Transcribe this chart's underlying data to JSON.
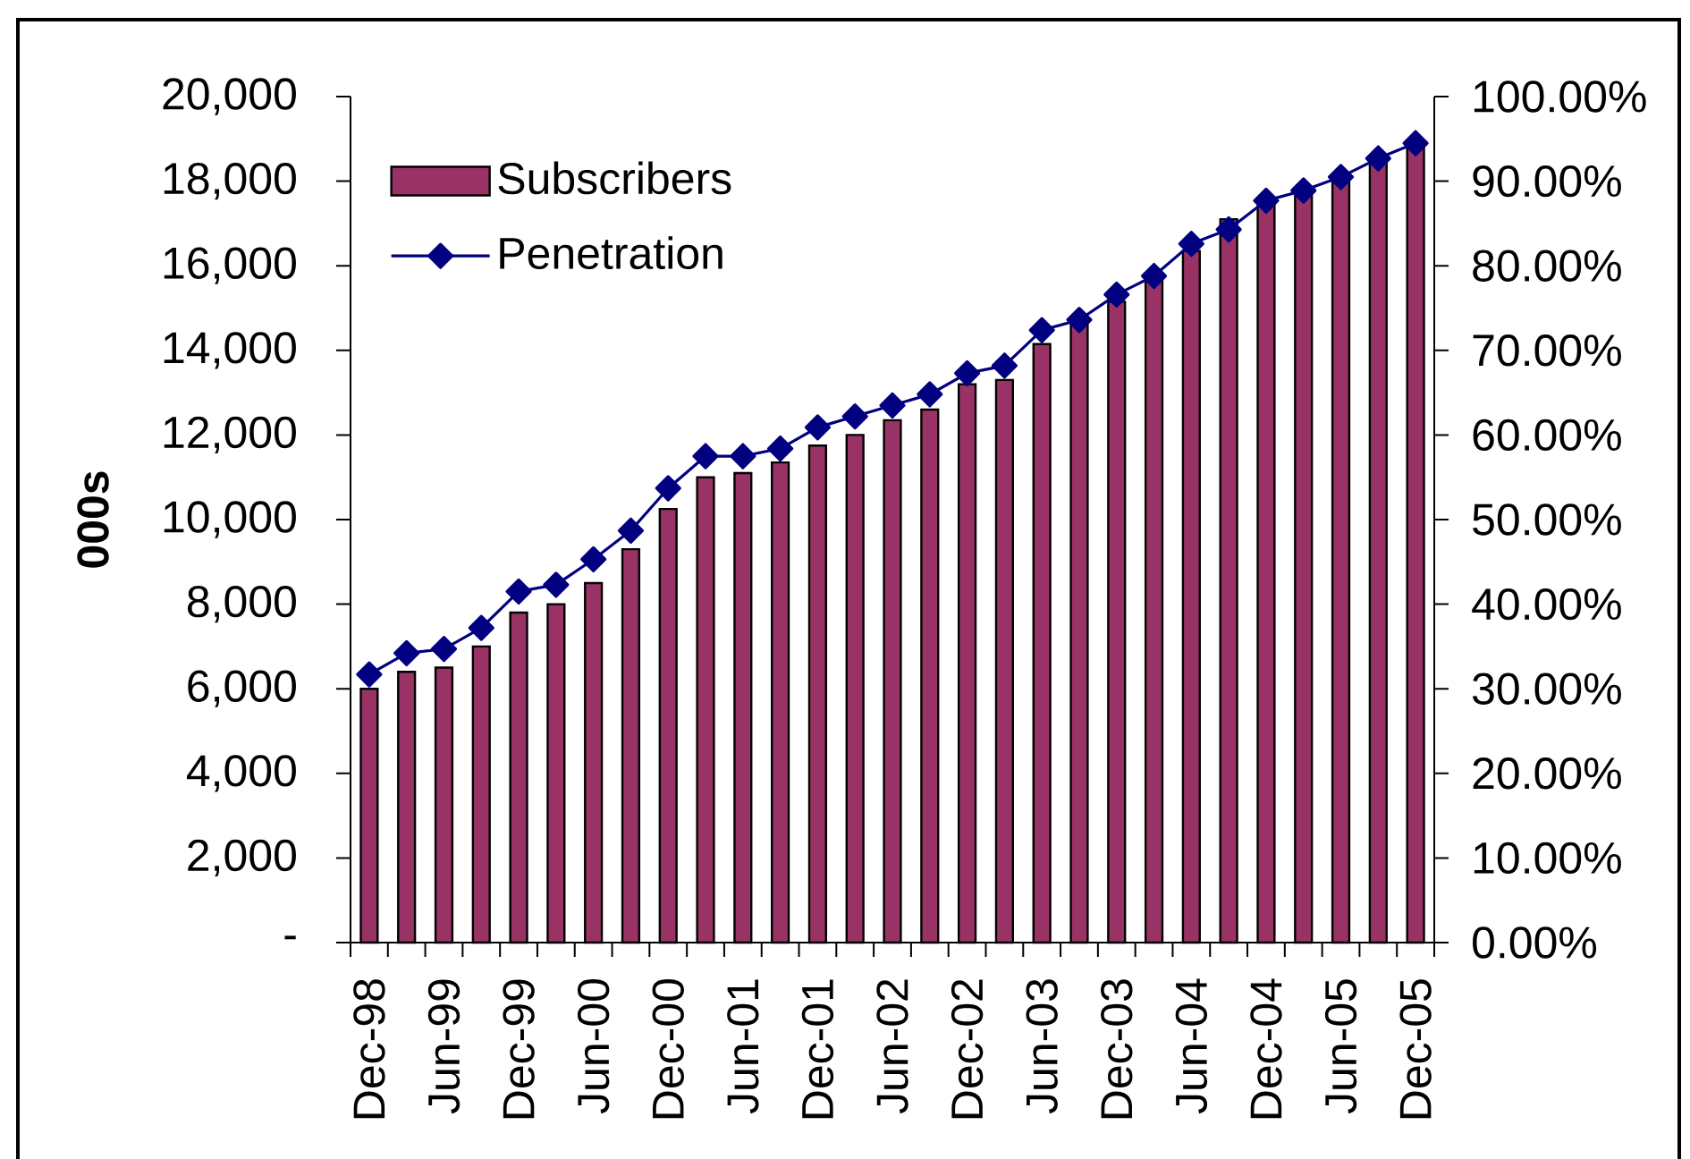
{
  "chart_data": {
    "type": "bar",
    "ylabel": "000s",
    "categories": [
      "Dec-98",
      null,
      "Jun-99",
      null,
      "Dec-99",
      null,
      "Jun-00",
      null,
      "Dec-00",
      null,
      "Jun-01",
      null,
      "Dec-01",
      null,
      "Jun-02",
      null,
      "Dec-02",
      null,
      "Jun-03",
      null,
      "Dec-03",
      null,
      "Jun-04",
      null,
      "Dec-04",
      null,
      "Jun-05",
      null,
      "Dec-05"
    ],
    "series": [
      {
        "name": "Subscribers",
        "color": "#993366",
        "values": [
          6000,
          6400,
          6500,
          7000,
          7800,
          8000,
          8500,
          9300,
          10250,
          11000,
          11100,
          11350,
          11750,
          12000,
          12350,
          12600,
          13200,
          13300,
          14150,
          14600,
          15150,
          15650,
          16350,
          17100,
          17500,
          17750,
          18050,
          18500,
          18850
        ]
      },
      {
        "name": "Penetration",
        "type": "line",
        "axis": "y2",
        "color": "#000080",
        "marker": "diamond",
        "values": [
          31.7,
          34.2,
          34.7,
          37.2,
          41.5,
          42.3,
          45.3,
          48.7,
          53.7,
          57.5,
          57.5,
          58.4,
          60.9,
          62.2,
          63.5,
          64.8,
          67.3,
          68.2,
          72.4,
          73.6,
          76.6,
          78.8,
          82.6,
          84.3,
          87.7,
          88.9,
          90.5,
          92.7,
          94.5
        ]
      }
    ],
    "ylim": [
      0,
      20000
    ],
    "yticks": [
      {
        "value": 0,
        "label": "-"
      },
      {
        "value": 2000,
        "label": "2,000"
      },
      {
        "value": 4000,
        "label": "4,000"
      },
      {
        "value": 6000,
        "label": "6,000"
      },
      {
        "value": 8000,
        "label": "8,000"
      },
      {
        "value": 10000,
        "label": "10,000"
      },
      {
        "value": 12000,
        "label": "12,000"
      },
      {
        "value": 14000,
        "label": "14,000"
      },
      {
        "value": 16000,
        "label": "16,000"
      },
      {
        "value": 18000,
        "label": "18,000"
      },
      {
        "value": 20000,
        "label": "20,000"
      }
    ],
    "y2lim": [
      0,
      100
    ],
    "y2ticks": [
      {
        "value": 0,
        "label": "0.00%"
      },
      {
        "value": 10,
        "label": "10.00%"
      },
      {
        "value": 20,
        "label": "20.00%"
      },
      {
        "value": 30,
        "label": "30.00%"
      },
      {
        "value": 40,
        "label": "40.00%"
      },
      {
        "value": 50,
        "label": "50.00%"
      },
      {
        "value": 60,
        "label": "60.00%"
      },
      {
        "value": 70,
        "label": "70.00%"
      },
      {
        "value": 80,
        "label": "80.00%"
      },
      {
        "value": 90,
        "label": "90.00%"
      },
      {
        "value": 100,
        "label": "100.00%"
      }
    ],
    "legend": "top left"
  }
}
